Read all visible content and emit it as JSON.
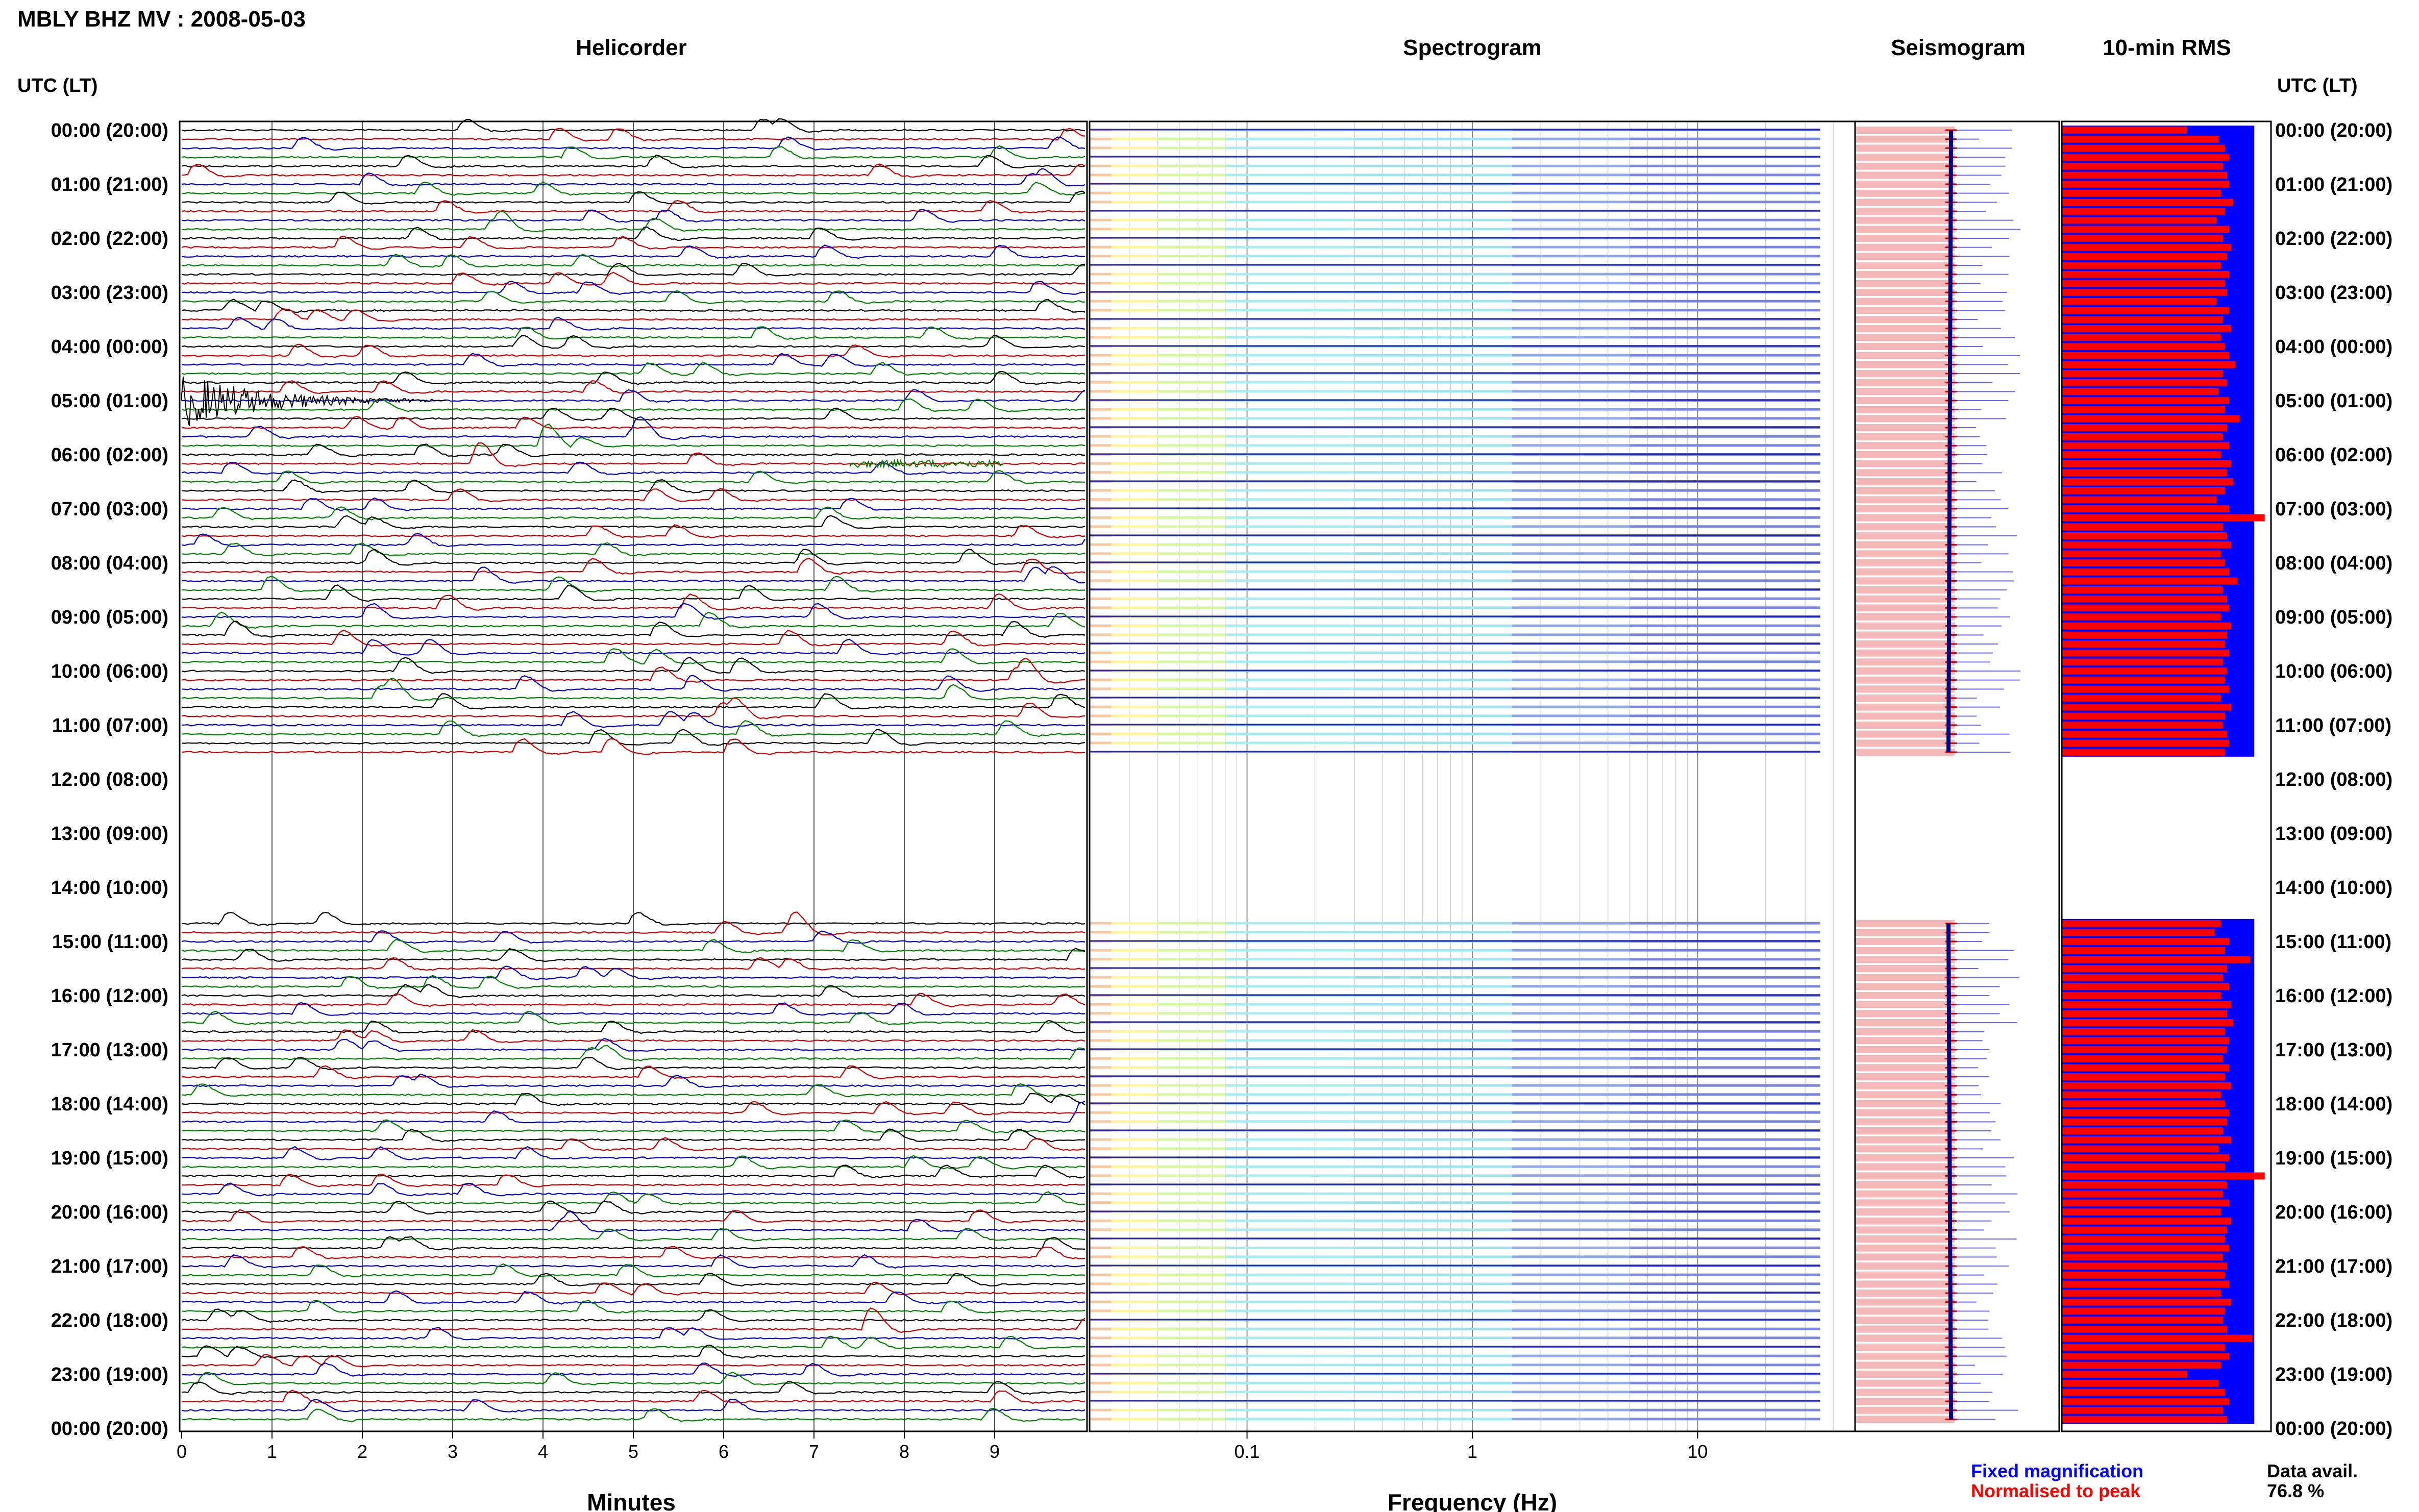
{
  "header": {
    "title": "MBLY BHZ MV : 2008-05-03",
    "left_axis_label": "UTC (LT)",
    "right_axis_label": "UTC (LT)"
  },
  "panels": {
    "helicorder": "Helicorder",
    "spectrogram": "Spectrogram",
    "seismogram": "Seismogram",
    "rms": "10-min RMS"
  },
  "axes": {
    "minutes_label": "Minutes",
    "frequency_label": "Frequency (Hz)",
    "minute_ticks": [
      "0",
      "1",
      "2",
      "3",
      "4",
      "5",
      "6",
      "7",
      "8",
      "9"
    ],
    "frequency_ticks": [
      "0.1",
      "1",
      "10"
    ]
  },
  "legend": {
    "fixed": "Fixed magnification",
    "normalised": "Normalised to peak"
  },
  "availability": {
    "label": "Data avail.",
    "value": "76.8 %"
  },
  "colors": {
    "fixed": "#0000ff",
    "normalised": "#ff0000",
    "trace_colors": [
      "#000000",
      "#cc0000",
      "#0000cc",
      "#008000"
    ],
    "rms_fixed": "#0000ff",
    "rms_normalised": "#ff0000",
    "seismogram_fill": "#f5b8b8"
  },
  "chart_data": {
    "type": "heatmap",
    "hour_labels": [
      "00:00 (20:00)",
      "01:00 (21:00)",
      "02:00 (22:00)",
      "03:00 (23:00)",
      "04:00 (00:00)",
      "05:00 (01:00)",
      "06:00 (02:00)",
      "07:00 (03:00)",
      "08:00 (04:00)",
      "09:00 (05:00)",
      "10:00 (06:00)",
      "11:00 (07:00)",
      "12:00 (08:00)",
      "13:00 (09:00)",
      "14:00 (10:00)",
      "15:00 (11:00)",
      "16:00 (12:00)",
      "17:00 (13:00)",
      "18:00 (14:00)",
      "19:00 (15:00)",
      "20:00 (16:00)",
      "21:00 (17:00)",
      "22:00 (18:00)",
      "23:00 (19:00)",
      "00:00 (20:00)"
    ],
    "rows_per_hour": 6,
    "data_gap": {
      "from": "11:40",
      "to": "14:40"
    },
    "minutes_range": [
      0,
      10
    ],
    "frequency_range_hz": [
      0.02,
      50
    ],
    "rms_fixed_level": 0.92,
    "rms_normalised_levels": [
      0.6,
      0.75,
      0.78,
      0.8,
      0.77,
      0.79,
      0.8,
      0.76,
      0.82,
      0.78,
      0.74,
      0.8,
      0.77,
      0.81,
      0.79,
      0.76,
      0.8,
      0.78,
      0.79,
      0.74,
      0.8,
      0.77,
      0.81,
      0.76,
      0.78,
      0.8,
      0.83,
      0.77,
      0.79,
      0.75,
      0.8,
      0.78,
      0.85,
      0.79,
      0.77,
      0.8,
      0.76,
      0.81,
      0.79,
      0.82,
      0.78,
      0.74,
      0.8,
      0.97,
      0.77,
      0.79,
      0.81,
      0.76,
      0.78,
      0.8,
      0.84,
      0.77,
      0.79,
      0.8,
      0.76,
      0.81,
      0.79,
      0.78,
      0.8,
      0.77,
      0.79,
      0.78,
      0.8,
      0.76,
      0.81,
      0.78,
      0.77,
      0.79,
      0.8,
      0.78,
      0.76,
      0.73,
      0.8,
      0.78,
      0.9,
      0.79,
      0.77,
      0.8,
      0.76,
      0.81,
      0.79,
      0.82,
      0.78,
      0.8,
      0.79,
      0.77,
      0.8,
      0.78,
      0.81,
      0.76,
      0.78,
      0.8,
      0.79,
      0.77,
      0.81,
      0.75,
      0.8,
      0.78,
      0.97,
      0.79,
      0.77,
      0.8,
      0.76,
      0.81,
      0.79,
      0.78,
      0.8,
      0.77,
      0.79,
      0.78,
      0.8,
      0.76,
      0.81,
      0.78,
      0.77,
      0.79,
      0.91,
      0.78,
      0.8,
      0.76
    ]
  }
}
